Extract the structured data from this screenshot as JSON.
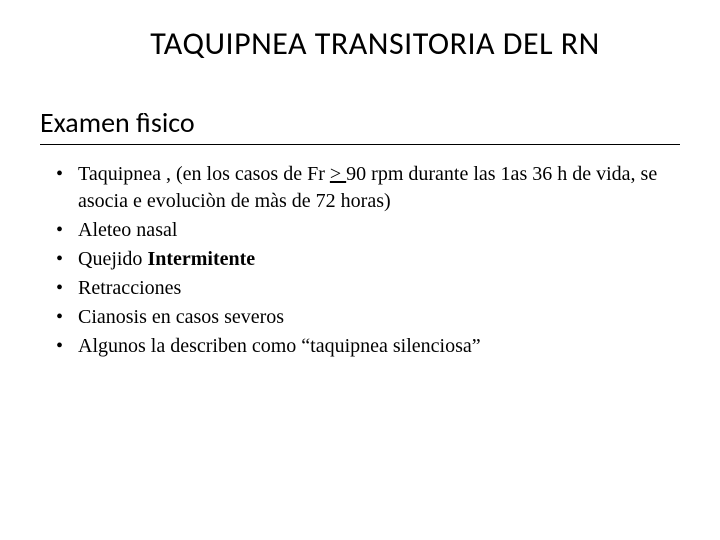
{
  "slide": {
    "title": "TAQUIPNEA TRANSITORIA DEL RN",
    "subtitle": "Examen fìsico",
    "bullets": [
      {
        "pre": "Taquipnea , (en los  casos de Fr  ",
        "u": "> ",
        "post": "90 rpm durante las 1as 36 h de vida, se asocia e evoluciòn de màs de 72 horas)",
        "bold": ""
      },
      {
        "pre": "Aleteo nasal",
        "u": "",
        "post": "",
        "bold": ""
      },
      {
        "pre": "Quejido ",
        "u": "",
        "post": "",
        "bold": "Intermitente"
      },
      {
        "pre": "Retracciones",
        "u": "",
        "post": "",
        "bold": ""
      },
      {
        "pre": "Cianosis en casos severos",
        "u": "",
        "post": "",
        "bold": ""
      },
      {
        "pre": "Algunos la describen como “taquipnea silenciosa”",
        "u": "",
        "post": "",
        "bold": ""
      }
    ]
  },
  "style": {
    "background_color": "#ffffff",
    "text_color": "#000000",
    "title_fontsize": 32,
    "subtitle_fontsize": 28,
    "body_fontsize": 20,
    "title_font": "Calibri",
    "body_font": "Times New Roman"
  }
}
